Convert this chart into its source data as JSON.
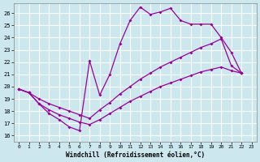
{
  "background_color": "#cce8ee",
  "grid_color": "#ffffff",
  "line_color": "#990099",
  "xlim": [
    -0.5,
    23.5
  ],
  "ylim": [
    15.5,
    26.8
  ],
  "xticks": [
    0,
    1,
    2,
    3,
    4,
    5,
    6,
    7,
    8,
    9,
    10,
    11,
    12,
    13,
    14,
    15,
    16,
    17,
    18,
    19,
    20,
    21,
    22,
    23
  ],
  "yticks": [
    16,
    17,
    18,
    19,
    20,
    21,
    22,
    23,
    24,
    25,
    26
  ],
  "xlabel": "Windchill (Refroidissement éolien,°C)",
  "line1_x": [
    0,
    1,
    2,
    3,
    4,
    5,
    6,
    7,
    8,
    9,
    10,
    11,
    12,
    13,
    14,
    15,
    16,
    17,
    18,
    19,
    20,
    21,
    22
  ],
  "line1_y": [
    19.8,
    19.5,
    18.6,
    17.8,
    17.3,
    16.7,
    16.4,
    22.1,
    19.3,
    21.0,
    23.5,
    25.4,
    26.5,
    25.9,
    26.1,
    26.4,
    25.4,
    25.1,
    25.1,
    25.1,
    24.0,
    22.8,
    21.1
  ],
  "line2_x": [
    0,
    1,
    2,
    3,
    4,
    5,
    6,
    7,
    8,
    9,
    10,
    11,
    12,
    13,
    14,
    15,
    16,
    17,
    18,
    19,
    20,
    21,
    22
  ],
  "line2_y": [
    19.8,
    19.5,
    19.0,
    18.6,
    18.3,
    18.0,
    17.7,
    17.4,
    18.1,
    18.7,
    19.4,
    20.0,
    20.6,
    21.1,
    21.6,
    22.0,
    22.4,
    22.8,
    23.2,
    23.5,
    23.9,
    21.7,
    21.1
  ],
  "line3_x": [
    0,
    1,
    2,
    3,
    4,
    5,
    6,
    7,
    8,
    9,
    10,
    11,
    12,
    13,
    14,
    15,
    16,
    17,
    18,
    19,
    20,
    21,
    22
  ],
  "line3_y": [
    19.8,
    19.5,
    18.6,
    18.1,
    17.7,
    17.4,
    17.1,
    16.9,
    17.3,
    17.8,
    18.3,
    18.8,
    19.2,
    19.6,
    20.0,
    20.3,
    20.6,
    20.9,
    21.2,
    21.4,
    21.6,
    21.3,
    21.1
  ]
}
